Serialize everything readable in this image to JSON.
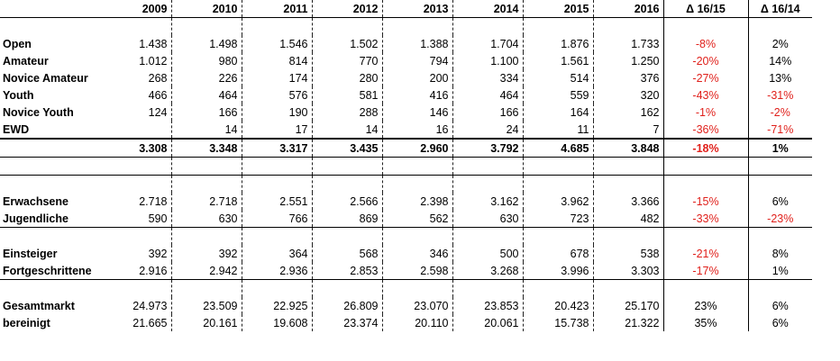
{
  "columns": [
    "2009",
    "2010",
    "2011",
    "2012",
    "2013",
    "2014",
    "2015",
    "2016",
    "Δ 16/15",
    "Δ 16/14"
  ],
  "colors": {
    "negative": "#e0201b",
    "text": "#000000"
  },
  "groups": [
    {
      "rows": [
        {
          "label": "Open",
          "values": [
            "1.438",
            "1.498",
            "1.546",
            "1.502",
            "1.388",
            "1.704",
            "1.876",
            "1.733"
          ],
          "deltas": [
            "-8%",
            "2%"
          ]
        },
        {
          "label": "Amateur",
          "values": [
            "1.012",
            "980",
            "814",
            "770",
            "794",
            "1.100",
            "1.561",
            "1.250"
          ],
          "deltas": [
            "-20%",
            "14%"
          ]
        },
        {
          "label": "Novice Amateur",
          "values": [
            "268",
            "226",
            "174",
            "280",
            "200",
            "334",
            "514",
            "376"
          ],
          "deltas": [
            "-27%",
            "13%"
          ]
        },
        {
          "label": "Youth",
          "values": [
            "466",
            "464",
            "576",
            "581",
            "416",
            "464",
            "559",
            "320"
          ],
          "deltas": [
            "-43%",
            "-31%"
          ]
        },
        {
          "label": "Novice Youth",
          "values": [
            "124",
            "166",
            "190",
            "288",
            "146",
            "166",
            "164",
            "162"
          ],
          "deltas": [
            "-1%",
            "-2%"
          ]
        },
        {
          "label": "EWD",
          "values": [
            "",
            "14",
            "17",
            "14",
            "16",
            "24",
            "11",
            "7"
          ],
          "deltas": [
            "-36%",
            "-71%"
          ]
        }
      ],
      "total": {
        "values": [
          "3.308",
          "3.348",
          "3.317",
          "3.435",
          "2.960",
          "3.792",
          "4.685",
          "3.848"
        ],
        "deltas": [
          "-18%",
          "1%"
        ]
      }
    },
    {
      "rows": [
        {
          "label": "Erwachsene",
          "values": [
            "2.718",
            "2.718",
            "2.551",
            "2.566",
            "2.398",
            "3.162",
            "3.962",
            "3.366"
          ],
          "deltas": [
            "-15%",
            "6%"
          ]
        },
        {
          "label": "Jugendliche",
          "values": [
            "590",
            "630",
            "766",
            "869",
            "562",
            "630",
            "723",
            "482"
          ],
          "deltas": [
            "-33%",
            "-23%"
          ]
        }
      ]
    },
    {
      "rows": [
        {
          "label": "Einsteiger",
          "values": [
            "392",
            "392",
            "364",
            "568",
            "346",
            "500",
            "678",
            "538"
          ],
          "deltas": [
            "-21%",
            "8%"
          ]
        },
        {
          "label": "Fortgeschrittene",
          "values": [
            "2.916",
            "2.942",
            "2.936",
            "2.853",
            "2.598",
            "3.268",
            "3.996",
            "3.303"
          ],
          "deltas": [
            "-17%",
            "1%"
          ]
        }
      ]
    },
    {
      "rows": [
        {
          "label": "Gesamtmarkt",
          "values": [
            "24.973",
            "23.509",
            "22.925",
            "26.809",
            "23.070",
            "23.853",
            "20.423",
            "25.170"
          ],
          "deltas": [
            "23%",
            "6%"
          ]
        },
        {
          "label": "bereinigt",
          "values": [
            "21.665",
            "20.161",
            "19.608",
            "23.374",
            "20.110",
            "20.061",
            "15.738",
            "21.322"
          ],
          "deltas": [
            "35%",
            "6%"
          ]
        }
      ]
    }
  ]
}
